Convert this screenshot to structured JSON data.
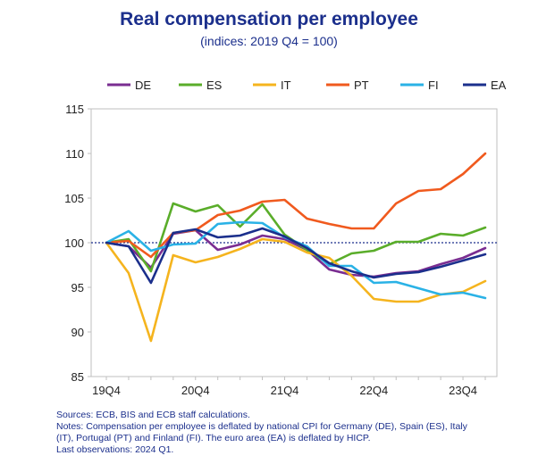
{
  "chart_data": {
    "type": "line",
    "title": "Real compensation per employee",
    "subtitle": "(indices: 2019 Q4 = 100)",
    "x": [
      "2019Q4",
      "2020Q1",
      "2020Q2",
      "2020Q3",
      "2020Q4",
      "2021Q1",
      "2021Q2",
      "2021Q3",
      "2021Q4",
      "2022Q1",
      "2022Q2",
      "2022Q3",
      "2022Q4",
      "2023Q1",
      "2023Q2",
      "2023Q3",
      "2023Q4",
      "2024Q1"
    ],
    "xtick_labels": [
      "19Q4",
      "20Q4",
      "21Q4",
      "22Q4",
      "23Q4"
    ],
    "xtick_indices": [
      0,
      4,
      8,
      12,
      16
    ],
    "ylim": [
      85,
      115
    ],
    "yticks": [
      85,
      90,
      95,
      100,
      105,
      110,
      115
    ],
    "reference_line": 100,
    "legend_position": "top",
    "series": [
      {
        "name": "DE",
        "color": "#7a2d91",
        "values": [
          100,
          99.6,
          97.2,
          101.0,
          101.4,
          99.2,
          99.8,
          100.8,
          100.4,
          99.2,
          97.0,
          96.4,
          96.2,
          96.6,
          96.8,
          97.6,
          98.3,
          99.4
        ]
      },
      {
        "name": "ES",
        "color": "#5aad2a",
        "values": [
          100,
          100.4,
          96.8,
          104.4,
          103.5,
          104.2,
          101.8,
          104.3,
          100.9,
          99.2,
          97.6,
          98.8,
          99.1,
          100.1,
          100.1,
          101.0,
          100.8,
          101.7
        ]
      },
      {
        "name": "IT",
        "color": "#f5b41e",
        "values": [
          100,
          96.6,
          89.0,
          98.6,
          97.8,
          98.4,
          99.3,
          100.4,
          100.1,
          98.9,
          98.3,
          96.3,
          93.7,
          93.4,
          93.4,
          94.2,
          94.5,
          95.7
        ]
      },
      {
        "name": "PT",
        "color": "#f05a1e",
        "values": [
          100,
          100.2,
          98.4,
          101.1,
          101.4,
          103.1,
          103.6,
          104.6,
          104.8,
          102.7,
          102.1,
          101.6,
          101.6,
          104.4,
          105.8,
          106.0,
          107.7,
          110.0
        ]
      },
      {
        "name": "FI",
        "color": "#2ab2e6",
        "values": [
          100,
          101.3,
          99.1,
          99.8,
          99.9,
          102.1,
          102.3,
          102.2,
          100.6,
          99.6,
          97.4,
          97.4,
          95.5,
          95.6,
          94.9,
          94.2,
          94.4,
          93.8
        ]
      },
      {
        "name": "EA",
        "color": "#1b2f8c",
        "values": [
          100,
          99.6,
          95.5,
          101.1,
          101.5,
          100.6,
          100.8,
          101.6,
          100.7,
          99.4,
          97.7,
          96.8,
          96.1,
          96.5,
          96.7,
          97.3,
          98.0,
          98.7
        ]
      }
    ]
  },
  "notes": [
    "Sources: ECB, BIS and ECB staff calculations.",
    "Notes: Compensation per employee is deflated by national CPI for Germany (DE), Spain (ES), Italy",
    "(IT), Portugal (PT) and Finland (FI). The euro area (EA) is deflated by HICP.",
    "Last observations: 2024 Q1."
  ]
}
